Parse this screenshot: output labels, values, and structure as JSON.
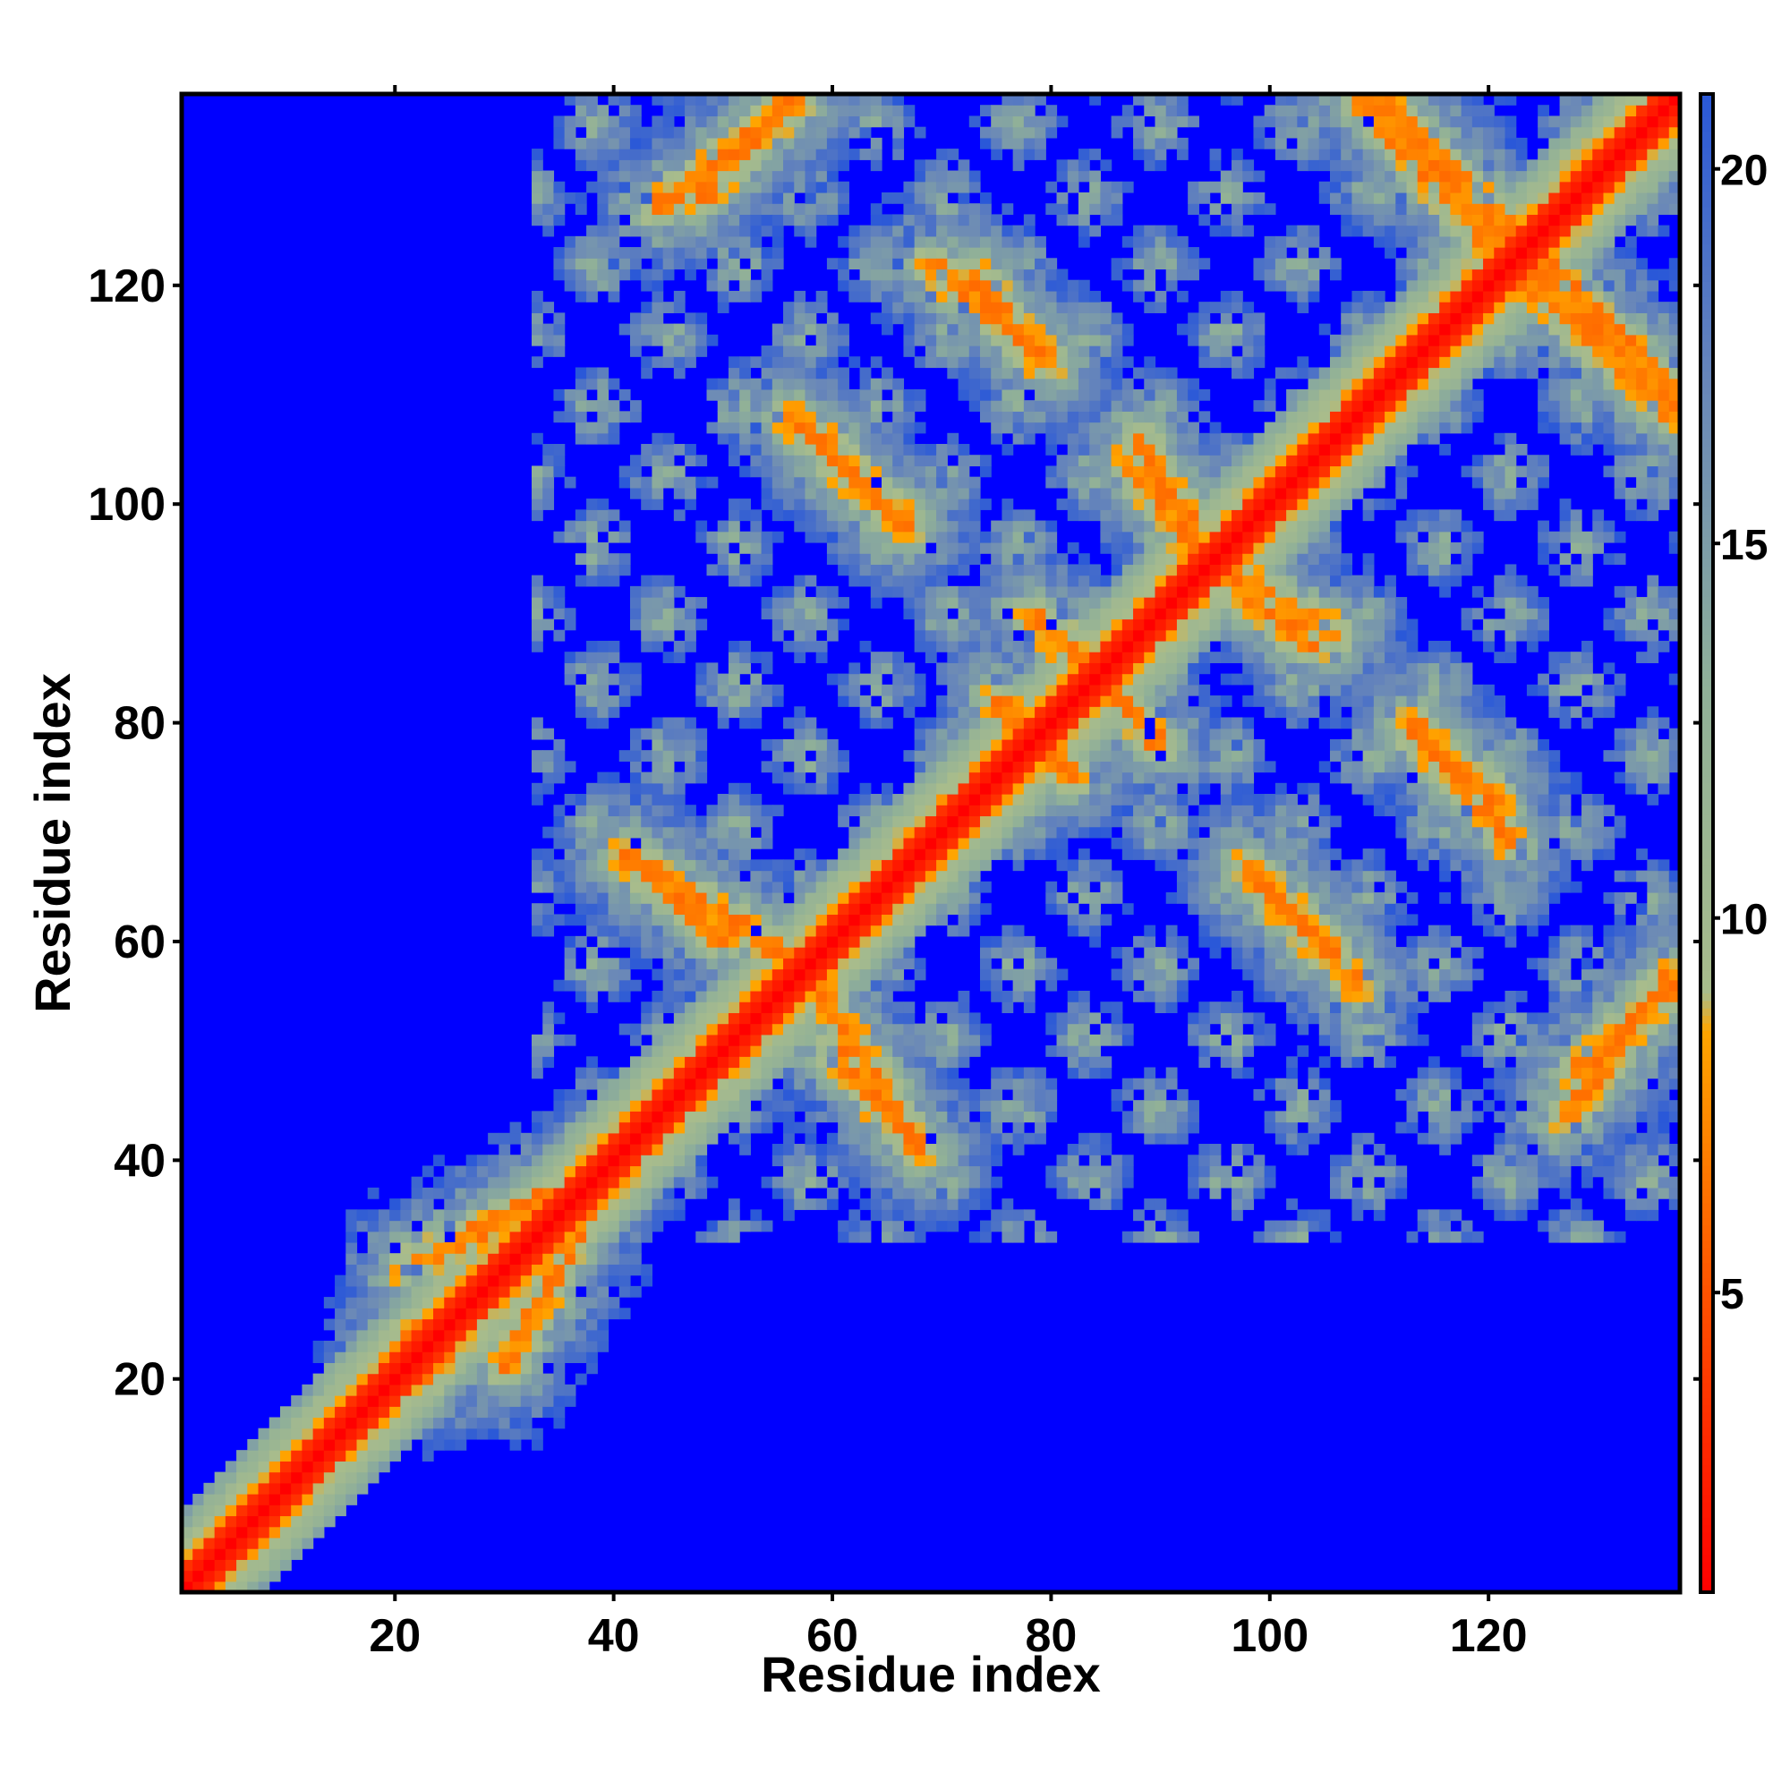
{
  "chart_data": {
    "type": "heatmap",
    "title": "",
    "xlabel": "Residue index",
    "ylabel": "Residue index",
    "matrix_size": 137,
    "x_range": [
      1,
      137
    ],
    "y_range": [
      1,
      137
    ],
    "x_ticks": [
      20,
      40,
      60,
      80,
      100,
      120
    ],
    "y_ticks": [
      20,
      40,
      60,
      80,
      100,
      120
    ],
    "colorbar": {
      "range": [
        1,
        21
      ],
      "ticks": [
        5,
        10,
        15,
        20
      ],
      "saturate_above": 21,
      "color_stops": [
        {
          "value": 1,
          "color": "#ff0000"
        },
        {
          "value": 5,
          "color": "#ff5200"
        },
        {
          "value": 8.5,
          "color": "#ffa500"
        },
        {
          "value": 9,
          "color": "#a8bc8c"
        },
        {
          "value": 13,
          "color": "#90b098"
        },
        {
          "value": 17,
          "color": "#6a88b8"
        },
        {
          "value": 21,
          "color": "#2a58d8"
        }
      ],
      "background_color": "#0000ff"
    },
    "symmetric": true,
    "diagonal_value": 1,
    "contact_bands": [
      {
        "x": [
          58,
          68
        ],
        "y": [
          57,
          41
        ],
        "center": 6
      },
      {
        "x": [
          41,
          50
        ],
        "y": [
          68,
          60
        ],
        "center": 6
      },
      {
        "x": [
          44,
          57
        ],
        "y": [
          127,
          137
        ],
        "center": 6
      },
      {
        "x": [
          59,
          66
        ],
        "y": [
          106,
          98
        ],
        "center": 6
      },
      {
        "x": [
          73,
          79
        ],
        "y": [
          121,
          113
        ],
        "center": 6
      },
      {
        "x": [
          87,
          93
        ],
        "y": [
          104,
          96
        ],
        "center": 6
      },
      {
        "x": [
          96,
          106
        ],
        "y": [
          94,
          88
        ],
        "center": 6
      },
      {
        "x": [
          85,
          90
        ],
        "y": [
          84,
          78
        ],
        "center": 6
      },
      {
        "x": [
          75,
          82
        ],
        "y": [
          82,
          75
        ],
        "center": 6
      },
      {
        "x": [
          98,
          108
        ],
        "y": [
          67,
          56
        ],
        "center": 6
      },
      {
        "x": [
          113,
          122
        ],
        "y": [
          80,
          69
        ],
        "center": 6
      },
      {
        "x": [
          128,
          137
        ],
        "y": [
          48,
          56
        ],
        "center": 6
      },
      {
        "x": [
          123,
          137
        ],
        "y": [
          121,
          108
        ],
        "center": 6
      },
      {
        "x": [
          110,
          123
        ],
        "y": [
          137,
          124
        ],
        "center": 6
      },
      {
        "x": [
          21,
          40
        ],
        "y": [
          30,
          40
        ],
        "center": 6
      },
      {
        "x": [
          20,
          33
        ],
        "y": [
          23,
          31
        ],
        "center": 6
      }
    ],
    "contact_domain": {
      "x": [
        33,
        137
      ],
      "y": [
        33,
        137
      ]
    }
  }
}
